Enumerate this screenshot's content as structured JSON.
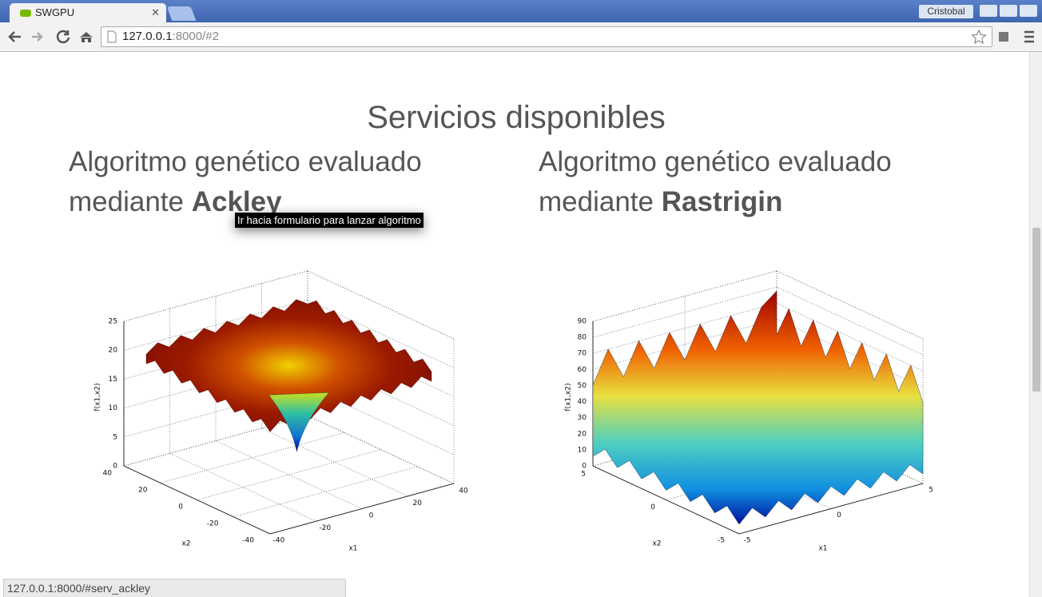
{
  "browser": {
    "tab_title": "SWGPU",
    "user": "Cristobal",
    "url_host": "127.0.0.1",
    "url_path": ":8000/#2"
  },
  "page": {
    "heading": "Servicios disponibles",
    "services": [
      {
        "title_prefix": "Algoritmo genético evaluado mediante",
        "name": "Ackley",
        "plot": {
          "zlabel": "f(x1,x2)",
          "xlabel": "x1",
          "ylabel": "x2",
          "zticks": [
            0,
            5,
            10,
            15,
            20,
            25
          ],
          "yticks": [
            40,
            20,
            0,
            -20,
            -40
          ],
          "xticks": [
            -40,
            -20,
            0,
            20,
            40
          ]
        }
      },
      {
        "title_prefix": "Algoritmo genético evaluado mediante",
        "name": "Rastrigin",
        "plot": {
          "zlabel": "f(x1,x2)",
          "xlabel": "x1",
          "ylabel": "x2",
          "zticks": [
            0,
            10,
            20,
            30,
            40,
            50,
            60,
            70,
            80,
            90
          ],
          "yticks": [
            5,
            0,
            -5
          ],
          "xticks": [
            -5,
            0,
            5
          ]
        }
      }
    ]
  },
  "tooltip": "Ir hacia formulario para lanzar algoritmo",
  "status_bar": "127.0.0.1:8000/#serv_ackley"
}
